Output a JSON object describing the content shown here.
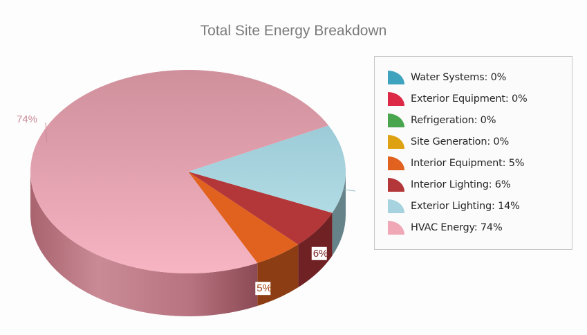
{
  "chart_data": {
    "type": "pie",
    "title": "Total Site Energy Breakdown",
    "slices": [
      {
        "name": "Water Systems",
        "value": 0,
        "label": "Water Systems: 0%",
        "color": "#3fa3bf"
      },
      {
        "name": "Exterior Equipment",
        "value": 0,
        "label": "Exterior Equipment: 0%",
        "color": "#dc2a46"
      },
      {
        "name": "Refrigeration",
        "value": 0,
        "label": "Refrigeration: 0%",
        "color": "#4aa64e"
      },
      {
        "name": "Site Generation",
        "value": 0,
        "label": "Site Generation: 0%",
        "color": "#dea112"
      },
      {
        "name": "Interior Equipment",
        "value": 5,
        "label": "Interior Equipment: 5%",
        "color": "#e1621f"
      },
      {
        "name": "Interior Lighting",
        "value": 6,
        "label": "Interior Lighting: 6%",
        "color": "#b33638"
      },
      {
        "name": "Exterior Lighting",
        "value": 14,
        "label": "Exterior Lighting: 14%",
        "color": "#a6d3df"
      },
      {
        "name": "HVAC Energy",
        "value": 74,
        "label": "HVAC Energy: 74%",
        "color": "#f0a7b6"
      }
    ],
    "data_labels": [
      {
        "series": "HVAC Energy",
        "text": "74%"
      },
      {
        "series": "Interior Lighting",
        "text": "6%"
      },
      {
        "series": "Interior Equipment",
        "text": "5%"
      }
    ],
    "legend_position": "right",
    "style": "3d"
  }
}
